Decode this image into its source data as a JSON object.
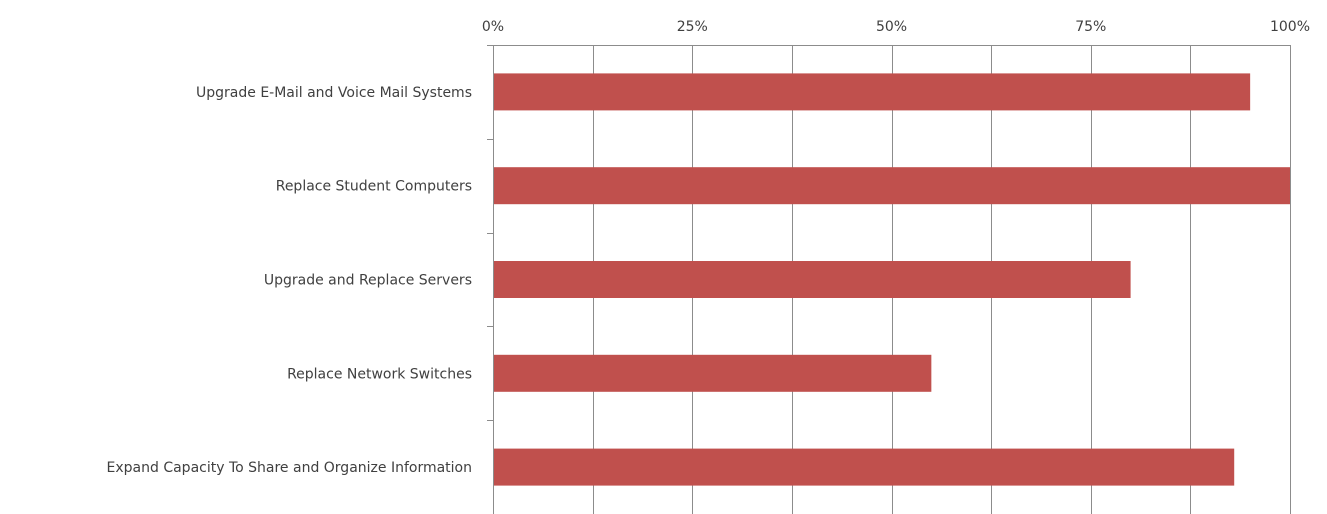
{
  "chart_data": {
    "type": "bar",
    "orientation": "horizontal",
    "categories": [
      "Upgrade E-Mail and Voice Mail Systems",
      "Replace Student Computers",
      "Upgrade and Replace Servers",
      "Replace Network Switches",
      "Expand Capacity To Share and Organize Information"
    ],
    "values": [
      95,
      100,
      80,
      55,
      93
    ],
    "xlim": [
      0,
      100
    ],
    "xticks": [
      0,
      25,
      50,
      75,
      100
    ],
    "xtick_labels": [
      "0%",
      "25%",
      "50%",
      "75%",
      "100%"
    ],
    "x_axis_position": "top",
    "grid": true,
    "title": "",
    "xlabel": "",
    "ylabel": "",
    "bar_color": "#c0504d",
    "grid_color": "#8c8c8c"
  }
}
